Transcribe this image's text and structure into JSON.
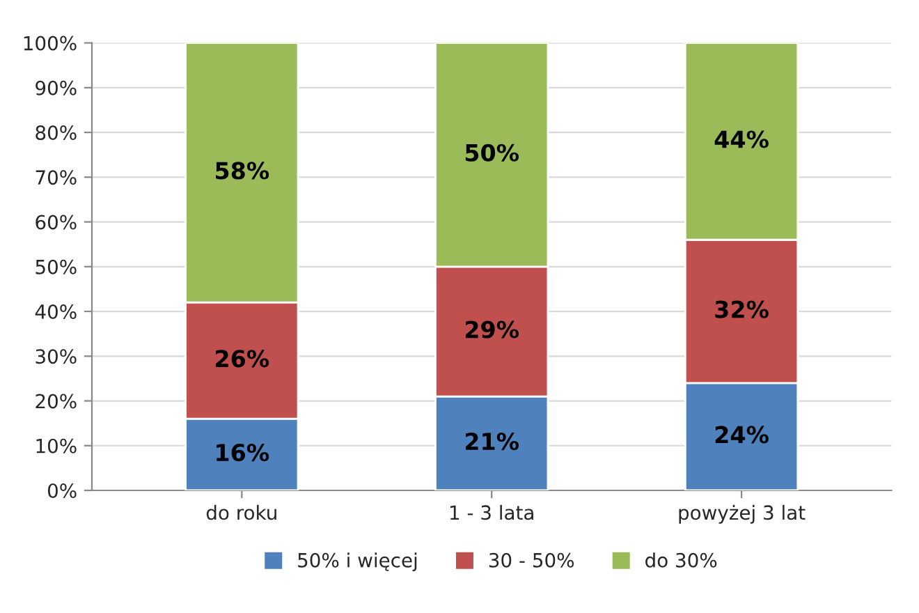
{
  "chart_data": {
    "type": "bar",
    "stacked": true,
    "categories": [
      "do roku",
      "1 - 3 lata",
      "powyżej 3 lat"
    ],
    "series": [
      {
        "name": "50% i więcej",
        "color": "#4f81bd",
        "values": [
          16,
          21,
          24
        ],
        "value_labels": [
          "16%",
          "21%",
          "24%"
        ]
      },
      {
        "name": "30 - 50%",
        "color": "#c0504d",
        "values": [
          26,
          29,
          32
        ],
        "value_labels": [
          "26%",
          "29%",
          "32%"
        ]
      },
      {
        "name": "do 30%",
        "color": "#9bbb59",
        "values": [
          58,
          50,
          44
        ],
        "value_labels": [
          "58%",
          "50%",
          "44%"
        ]
      }
    ],
    "ylim": [
      0,
      100
    ],
    "yticks": [
      {
        "value": 0,
        "label": "0%"
      },
      {
        "value": 10,
        "label": "10%"
      },
      {
        "value": 20,
        "label": "20%"
      },
      {
        "value": 30,
        "label": "30%"
      },
      {
        "value": 40,
        "label": "40%"
      },
      {
        "value": 50,
        "label": "50%"
      },
      {
        "value": 60,
        "label": "60%"
      },
      {
        "value": 70,
        "label": "70%"
      },
      {
        "value": 80,
        "label": "80%"
      },
      {
        "value": 90,
        "label": "90%"
      },
      {
        "value": 100,
        "label": "100%"
      }
    ],
    "grid": "y",
    "legend": "bottom"
  }
}
